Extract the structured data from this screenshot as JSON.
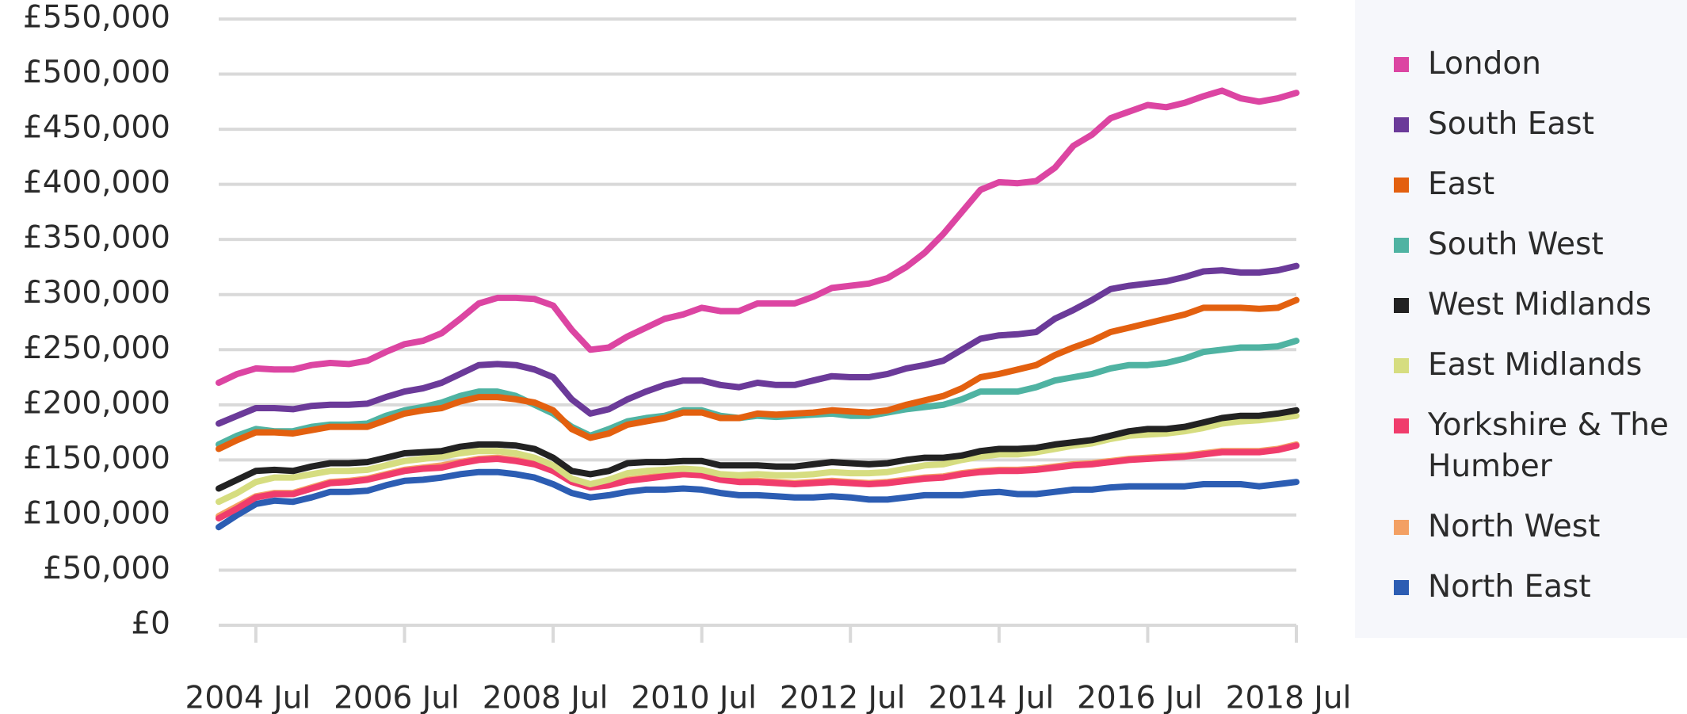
{
  "chart_data": {
    "type": "line",
    "categories": [
      null,
      null,
      "2004 Jul",
      null,
      null,
      null,
      null,
      null,
      null,
      null,
      "2006 Jul",
      null,
      null,
      null,
      null,
      null,
      null,
      null,
      "2008 Jul",
      null,
      null,
      null,
      null,
      null,
      null,
      null,
      "2010 Jul",
      null,
      null,
      null,
      null,
      null,
      null,
      null,
      "2012 Jul",
      null,
      null,
      null,
      null,
      null,
      null,
      null,
      "2014 Jul",
      null,
      null,
      null,
      null,
      null,
      null,
      null,
      "2016 Jul",
      null,
      null,
      null,
      null,
      null,
      null,
      null,
      "2018 Jul"
    ],
    "ylim": [
      0,
      550000
    ],
    "yticks": [
      {
        "value": 0,
        "label": "£0"
      },
      {
        "value": 50000,
        "label": "£50,000"
      },
      {
        "value": 100000,
        "label": "£100,000"
      },
      {
        "value": 150000,
        "label": "£150,000"
      },
      {
        "value": 200000,
        "label": "£200,000"
      },
      {
        "value": 250000,
        "label": "£250,000"
      },
      {
        "value": 300000,
        "label": "£300,000"
      },
      {
        "value": 350000,
        "label": "£350,000"
      },
      {
        "value": 400000,
        "label": "£400,000"
      },
      {
        "value": 450000,
        "label": "£450,000"
      },
      {
        "value": 500000,
        "label": "£500,000"
      },
      {
        "value": 550000,
        "label": "£550,000"
      }
    ],
    "grid": true,
    "legend": "right",
    "series": [
      {
        "name": "London",
        "color": "#dc45a2",
        "values": [
          220000,
          228000,
          233000,
          232000,
          232000,
          236000,
          238000,
          237000,
          240000,
          248000,
          255000,
          258000,
          265000,
          278000,
          292000,
          297000,
          297000,
          296000,
          290000,
          268000,
          250000,
          252000,
          262000,
          270000,
          278000,
          282000,
          288000,
          285000,
          285000,
          292000,
          292000,
          292000,
          298000,
          306000,
          308000,
          310000,
          315000,
          325000,
          338000,
          355000,
          375000,
          395000,
          402000,
          401000,
          403000,
          415000,
          435000,
          445000,
          460000,
          466000,
          472000,
          470000,
          474000,
          480000,
          485000,
          478000,
          475000,
          478000,
          483000
        ]
      },
      {
        "name": "South East",
        "color": "#6b3a99",
        "values": [
          183000,
          190000,
          197000,
          197000,
          196000,
          199000,
          200000,
          200000,
          201000,
          207000,
          212000,
          215000,
          220000,
          228000,
          236000,
          237000,
          236000,
          232000,
          225000,
          205000,
          192000,
          196000,
          205000,
          212000,
          218000,
          222000,
          222000,
          218000,
          216000,
          220000,
          218000,
          218000,
          222000,
          226000,
          225000,
          225000,
          228000,
          233000,
          236000,
          240000,
          250000,
          260000,
          263000,
          264000,
          266000,
          278000,
          286000,
          295000,
          305000,
          308000,
          310000,
          312000,
          316000,
          321000,
          322000,
          320000,
          320000,
          322000,
          326000
        ]
      },
      {
        "name": "East",
        "color": "#e3600f",
        "values": [
          160000,
          168000,
          175000,
          175000,
          174000,
          177000,
          180000,
          180000,
          180000,
          186000,
          192000,
          195000,
          197000,
          203000,
          207000,
          207000,
          205000,
          202000,
          195000,
          178000,
          170000,
          174000,
          182000,
          185000,
          188000,
          193000,
          193000,
          188000,
          188000,
          192000,
          191000,
          192000,
          193000,
          195000,
          194000,
          193000,
          195000,
          200000,
          204000,
          208000,
          215000,
          225000,
          228000,
          232000,
          236000,
          245000,
          252000,
          258000,
          266000,
          270000,
          274000,
          278000,
          282000,
          288000,
          288000,
          288000,
          287000,
          288000,
          295000
        ]
      },
      {
        "name": "South West",
        "color": "#4fb3a2",
        "values": [
          164000,
          172000,
          178000,
          176000,
          176000,
          180000,
          182000,
          182000,
          183000,
          190000,
          195000,
          198000,
          202000,
          208000,
          212000,
          212000,
          208000,
          200000,
          192000,
          180000,
          172000,
          178000,
          185000,
          188000,
          190000,
          195000,
          195000,
          190000,
          188000,
          190000,
          189000,
          190000,
          191000,
          192000,
          190000,
          190000,
          193000,
          196000,
          198000,
          200000,
          205000,
          212000,
          212000,
          212000,
          216000,
          222000,
          225000,
          228000,
          233000,
          236000,
          236000,
          238000,
          242000,
          248000,
          250000,
          252000,
          252000,
          253000,
          258000
        ]
      },
      {
        "name": "West Midlands",
        "color": "#222222",
        "values": [
          124000,
          132000,
          140000,
          141000,
          140000,
          144000,
          147000,
          147000,
          148000,
          152000,
          156000,
          157000,
          158000,
          162000,
          164000,
          164000,
          163000,
          160000,
          152000,
          140000,
          137000,
          140000,
          147000,
          148000,
          148000,
          149000,
          149000,
          145000,
          145000,
          145000,
          144000,
          144000,
          146000,
          148000,
          147000,
          146000,
          147000,
          150000,
          152000,
          152000,
          154000,
          158000,
          160000,
          160000,
          161000,
          164000,
          166000,
          168000,
          172000,
          176000,
          178000,
          178000,
          180000,
          184000,
          188000,
          190000,
          190000,
          192000,
          195000
        ]
      },
      {
        "name": "East Midlands",
        "color": "#d6dd80",
        "values": [
          112000,
          120000,
          130000,
          134000,
          134000,
          137000,
          140000,
          140000,
          141000,
          145000,
          149000,
          151000,
          153000,
          156000,
          158000,
          158000,
          156000,
          152000,
          145000,
          133000,
          128000,
          132000,
          138000,
          140000,
          141000,
          142000,
          141000,
          137000,
          136000,
          137000,
          136000,
          136000,
          137000,
          139000,
          138000,
          138000,
          139000,
          142000,
          145000,
          146000,
          150000,
          153000,
          155000,
          155000,
          157000,
          160000,
          163000,
          165000,
          169000,
          172000,
          173000,
          174000,
          176000,
          179000,
          183000,
          185000,
          186000,
          188000,
          190000
        ]
      },
      {
        "name": "Yorkshire & The Humber",
        "color": "#f03c6c",
        "values": [
          97000,
          106000,
          116000,
          119000,
          119000,
          124000,
          129000,
          130000,
          132000,
          136000,
          140000,
          142000,
          143000,
          147000,
          150000,
          151000,
          149000,
          146000,
          140000,
          130000,
          125000,
          127000,
          131000,
          133000,
          135000,
          137000,
          136000,
          132000,
          130000,
          130000,
          129000,
          128000,
          129000,
          130000,
          129000,
          128000,
          129000,
          131000,
          133000,
          134000,
          137000,
          139000,
          140000,
          140000,
          141000,
          143000,
          145000,
          146000,
          148000,
          150000,
          151000,
          152000,
          153000,
          155000,
          157000,
          157000,
          157000,
          159000,
          163000
        ]
      },
      {
        "name": "North West",
        "color": "#f3a063",
        "values": [
          99000,
          108000,
          117000,
          120000,
          120000,
          125000,
          130000,
          131000,
          133000,
          137000,
          141000,
          143000,
          145000,
          148000,
          151000,
          152000,
          150000,
          147000,
          141000,
          131000,
          126000,
          128000,
          132000,
          134000,
          136000,
          138000,
          137000,
          133000,
          131000,
          131000,
          130000,
          129000,
          130000,
          131000,
          130000,
          129000,
          130000,
          132000,
          134000,
          135000,
          138000,
          140000,
          141000,
          141000,
          142000,
          144000,
          146000,
          147000,
          149000,
          151000,
          152000,
          153000,
          154000,
          156000,
          158000,
          158000,
          158000,
          160000,
          164000
        ]
      },
      {
        "name": "North East",
        "color": "#2c5db3",
        "values": [
          89000,
          100000,
          110000,
          113000,
          112000,
          116000,
          121000,
          121000,
          122000,
          127000,
          131000,
          132000,
          134000,
          137000,
          139000,
          139000,
          137000,
          134000,
          128000,
          120000,
          116000,
          118000,
          121000,
          123000,
          123000,
          124000,
          123000,
          120000,
          118000,
          118000,
          117000,
          116000,
          116000,
          117000,
          116000,
          114000,
          114000,
          116000,
          118000,
          118000,
          118000,
          120000,
          121000,
          119000,
          119000,
          121000,
          123000,
          123000,
          125000,
          126000,
          126000,
          126000,
          126000,
          128000,
          128000,
          128000,
          126000,
          128000,
          130000
        ]
      }
    ]
  }
}
